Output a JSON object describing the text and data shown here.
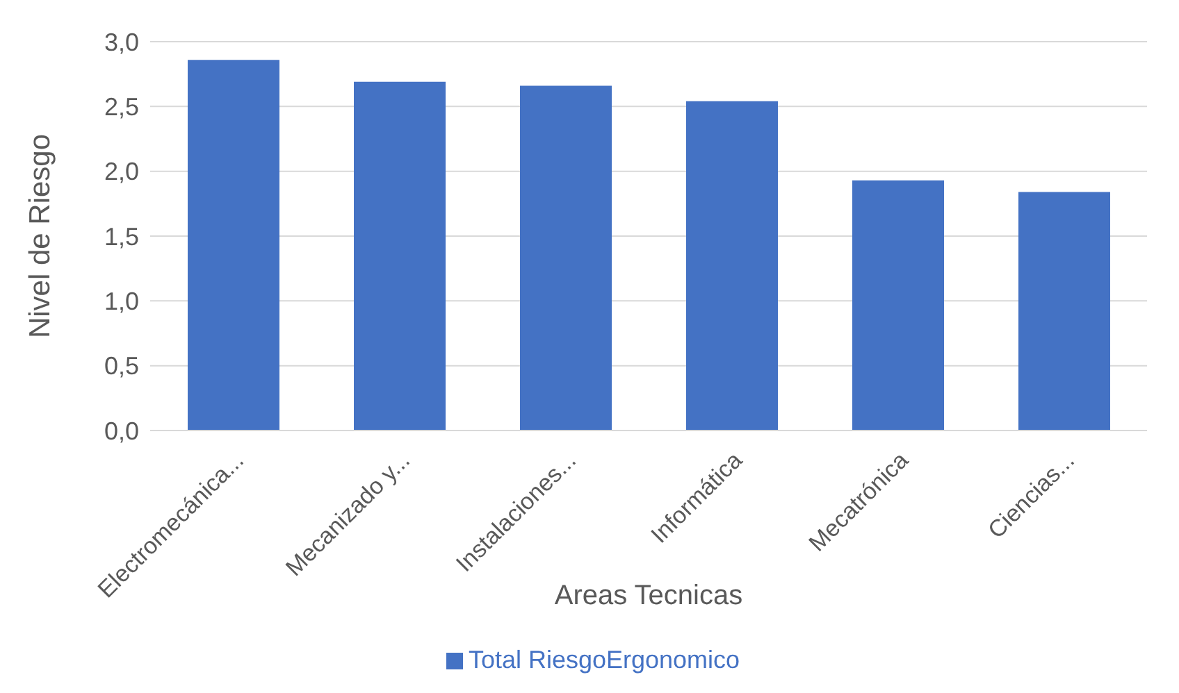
{
  "chart_data": {
    "type": "bar",
    "xlabel": "Areas Tecnicas",
    "ylabel": "Nivel de Riesgo",
    "categories": [
      "Electromecánica...",
      "Mecanizado y...",
      "Instalaciones...",
      "Informática",
      "Mecatrónica",
      "Ciencias..."
    ],
    "series": [
      {
        "name": "Total RiesgoErgonomico",
        "color": "#4472c4",
        "values": [
          2.86,
          2.69,
          2.66,
          2.54,
          1.93,
          1.84
        ]
      }
    ],
    "ylim": [
      0,
      3
    ],
    "yticks": [
      {
        "value": 0,
        "label": "0,0"
      },
      {
        "value": 0.5,
        "label": "0,5"
      },
      {
        "value": 1,
        "label": "1,0"
      },
      {
        "value": 1.5,
        "label": "1,5"
      },
      {
        "value": 2,
        "label": "2,0"
      },
      {
        "value": 2.5,
        "label": "2,5"
      },
      {
        "value": 3,
        "label": "3,0"
      }
    ],
    "grid": "y",
    "legend": "bottom"
  }
}
